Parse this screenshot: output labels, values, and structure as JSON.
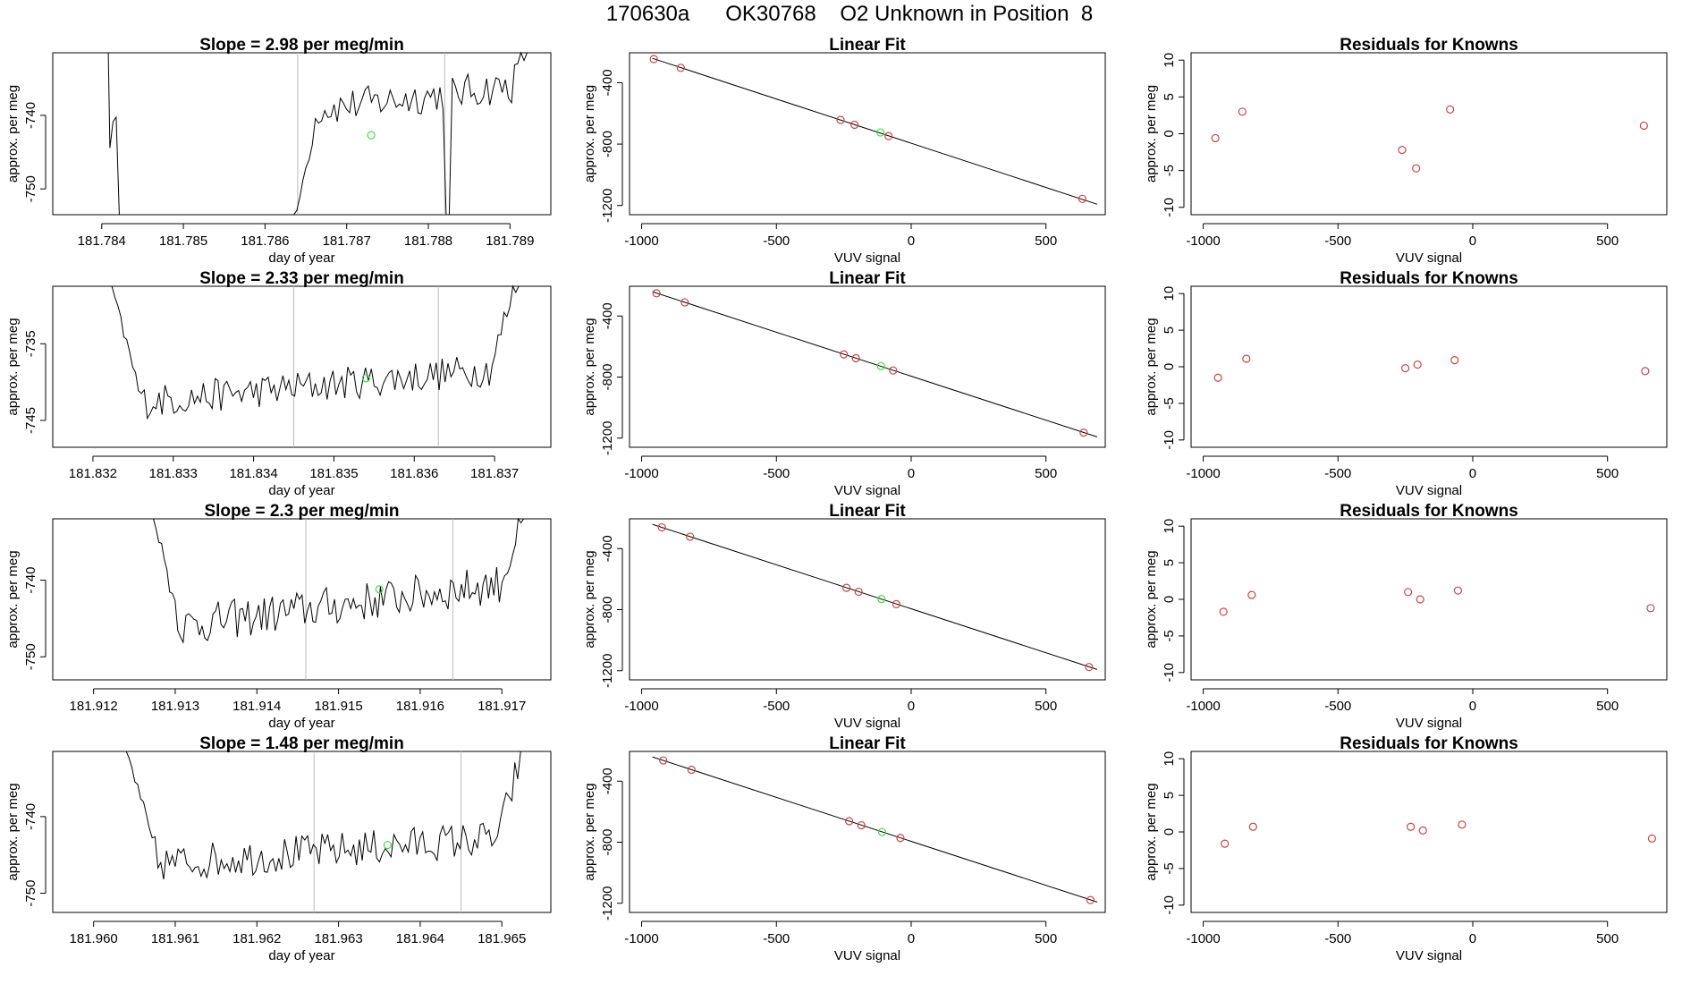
{
  "page_title": "170630a      OK30768    O2 Unknown in Position  8",
  "colors": {
    "trace": "#000000",
    "known_point": "#cc4444",
    "unknown_point": "#44dd44",
    "guide_line": "#bbbbbb",
    "axis": "#000000"
  },
  "chart_data": [
    {
      "type": "line",
      "row": 1,
      "title": "Slope =  2.98  per meg/min",
      "xlabel": "day of year",
      "ylabel": "approx. per meg",
      "xlim": [
        181.7834,
        181.7895
      ],
      "ylim": [
        -753.5,
        -731.5
      ],
      "xticks": [
        181.784,
        181.785,
        181.786,
        181.787,
        181.788,
        181.789
      ],
      "xtick_labels": [
        "181.784",
        "181.785",
        "181.786",
        "181.787",
        "181.788",
        "181.789"
      ],
      "yticks": [
        -750,
        -740
      ],
      "ytick_labels": [
        "-750",
        "-740"
      ],
      "vlines": [
        181.7864,
        181.7882
      ],
      "unknown_point": [
        181.7873,
        -742.7
      ],
      "series": {
        "x_start": 181.7841,
        "x_end": 181.7894,
        "n": 140,
        "baseline": -742.5,
        "trend": 7,
        "noise": 2.4,
        "spike_out_after": 1,
        "spike_in_at": 0.43,
        "spike_in_from": -753.5,
        "tail_rise": 12,
        "dip_at": 0.78
      }
    },
    {
      "type": "line",
      "row": 2,
      "title": "Slope =  2.33  per meg/min",
      "xlabel": "day of year",
      "ylabel": "approx. per meg",
      "xlim": [
        181.8315,
        181.8377
      ],
      "ylim": [
        -748.5,
        -727.5
      ],
      "xticks": [
        181.832,
        181.833,
        181.834,
        181.835,
        181.836,
        181.837
      ],
      "xtick_labels": [
        "181.832",
        "181.833",
        "181.834",
        "181.835",
        "181.836",
        "181.837"
      ],
      "yticks": [
        -745,
        -735
      ],
      "ytick_labels": [
        "-745",
        "-735"
      ],
      "vlines": [
        181.8345,
        181.8363
      ],
      "unknown_point": [
        181.8354,
        -739.5
      ],
      "series": {
        "x_start": 181.8322,
        "x_end": 181.8373,
        "n": 140,
        "baseline": -743,
        "trend": 5,
        "noise": 2.2,
        "start_from": -726,
        "tail_rise": 12
      }
    },
    {
      "type": "line",
      "row": 3,
      "title": "Slope =  2.3  per meg/min",
      "xlabel": "day of year",
      "ylabel": "approx. per meg",
      "xlim": [
        181.9115,
        181.9176
      ],
      "ylim": [
        -753,
        -732
      ],
      "xticks": [
        181.912,
        181.913,
        181.914,
        181.915,
        181.916,
        181.917
      ],
      "xtick_labels": [
        "181.912",
        "181.913",
        "181.914",
        "181.915",
        "181.916",
        "181.917"
      ],
      "yticks": [
        -750,
        -740
      ],
      "ytick_labels": [
        "-750",
        "-740"
      ],
      "vlines": [
        181.9146,
        181.9164
      ],
      "unknown_point": [
        181.9155,
        -741.2
      ],
      "series": {
        "x_start": 181.9127,
        "x_end": 181.9173,
        "n": 140,
        "baseline": -746.5,
        "trend": 6.5,
        "noise": 2.6,
        "start_from": -730,
        "tail_rise": 9
      }
    },
    {
      "type": "line",
      "row": 4,
      "title": "Slope =  1.48  per meg/min",
      "xlabel": "day of year",
      "ylabel": "approx. per meg",
      "xlim": [
        181.9595,
        181.9656
      ],
      "ylim": [
        -752.5,
        -731.5
      ],
      "xticks": [
        181.96,
        181.961,
        181.962,
        181.963,
        181.964,
        181.965
      ],
      "xtick_labels": [
        "181.960",
        "181.961",
        "181.962",
        "181.963",
        "181.964",
        "181.965"
      ],
      "yticks": [
        -750,
        -740
      ],
      "ytick_labels": [
        "-750",
        "-740"
      ],
      "vlines": [
        181.9627,
        181.9645
      ],
      "unknown_point": [
        181.9636,
        -743.7
      ],
      "series": {
        "x_start": 181.9604,
        "x_end": 181.9653,
        "n": 140,
        "baseline": -746.5,
        "trend": 4,
        "noise": 2.4,
        "start_from": -731,
        "tail_rise": 13
      }
    },
    {
      "type": "scatter",
      "row": 1,
      "title": "Linear Fit",
      "xlabel": "VUV signal",
      "ylabel": "approx. per meg",
      "xlim": [
        -1045,
        720
      ],
      "ylim": [
        -1260,
        -205
      ],
      "xticks": [
        -1000,
        -500,
        0,
        500
      ],
      "xtick_labels": [
        "-1000",
        "-500",
        "0",
        "500"
      ],
      "yticks": [
        -1200,
        -800,
        -400
      ],
      "ytick_labels": [
        "-1200",
        "-800",
        "-400"
      ],
      "fit_line": {
        "x": [
          -960,
          690
        ],
        "y": [
          -241,
          -1192
        ]
      },
      "knowns": [
        [
          -955,
          -246
        ],
        [
          -855,
          -303
        ],
        [
          -262,
          -643
        ],
        [
          -210,
          -674
        ],
        [
          -84,
          -748
        ],
        [
          635,
          -1157
        ]
      ],
      "unknown": [
        -114,
        -724
      ]
    },
    {
      "type": "scatter",
      "row": 2,
      "title": "Linear Fit",
      "xlabel": "VUV signal",
      "ylabel": "approx. per meg",
      "xlim": [
        -1045,
        720
      ],
      "ylim": [
        -1260,
        -205
      ],
      "xticks": [
        -1000,
        -500,
        0,
        500
      ],
      "xtick_labels": [
        "-1000",
        "-500",
        "0",
        "500"
      ],
      "yticks": [
        -1200,
        -800,
        -400
      ],
      "ytick_labels": [
        "-1200",
        "-800",
        "-400"
      ],
      "fit_line": {
        "x": [
          -960,
          690
        ],
        "y": [
          -241,
          -1192
        ]
      },
      "knowns": [
        [
          -945,
          -251
        ],
        [
          -840,
          -311
        ],
        [
          -250,
          -651
        ],
        [
          -205,
          -677
        ],
        [
          -67,
          -757
        ],
        [
          640,
          -1164
        ]
      ],
      "unknown": [
        -112,
        -728
      ]
    },
    {
      "type": "scatter",
      "row": 3,
      "title": "Linear Fit",
      "xlabel": "VUV signal",
      "ylabel": "approx. per meg",
      "xlim": [
        -1045,
        720
      ],
      "ylim": [
        -1260,
        -205
      ],
      "xticks": [
        -1000,
        -500,
        0,
        500
      ],
      "xtick_labels": [
        "-1000",
        "-500",
        "0",
        "500"
      ],
      "yticks": [
        -1200,
        -800,
        -400
      ],
      "ytick_labels": [
        "-1200",
        "-800",
        "-400"
      ],
      "fit_line": {
        "x": [
          -960,
          690
        ],
        "y": [
          -241,
          -1192
        ]
      },
      "knowns": [
        [
          -925,
          -261
        ],
        [
          -820,
          -322
        ],
        [
          -240,
          -657
        ],
        [
          -195,
          -683
        ],
        [
          -55,
          -764
        ],
        [
          660,
          -1176
        ]
      ],
      "unknown": [
        -110,
        -731
      ]
    },
    {
      "type": "scatter",
      "row": 4,
      "title": "Linear Fit",
      "xlabel": "VUV signal",
      "ylabel": "approx. per meg",
      "xlim": [
        -1045,
        720
      ],
      "ylim": [
        -1260,
        -205
      ],
      "xticks": [
        -1000,
        -500,
        0,
        500
      ],
      "xtick_labels": [
        "-1000",
        "-500",
        "0",
        "500"
      ],
      "yticks": [
        -1200,
        -800,
        -400
      ],
      "ytick_labels": [
        "-1200",
        "-800",
        "-400"
      ],
      "fit_line": {
        "x": [
          -960,
          690
        ],
        "y": [
          -241,
          -1192
        ]
      },
      "knowns": [
        [
          -920,
          -264
        ],
        [
          -815,
          -325
        ],
        [
          -230,
          -662
        ],
        [
          -185,
          -689
        ],
        [
          -40,
          -772
        ],
        [
          665,
          -1179
        ]
      ],
      "unknown": [
        -108,
        -733
      ]
    },
    {
      "type": "scatter",
      "row": 1,
      "title": "Residuals for Knowns",
      "xlabel": "VUV signal",
      "ylabel": "approx. per meg",
      "xlim": [
        -1045,
        720
      ],
      "ylim": [
        -11,
        11
      ],
      "xticks": [
        -1000,
        -500,
        0,
        500
      ],
      "xtick_labels": [
        "-1000",
        "-500",
        "0",
        "500"
      ],
      "yticks": [
        -10,
        -5,
        0,
        5,
        10
      ],
      "ytick_labels": [
        "-10",
        "-5",
        "0",
        "5",
        "10"
      ],
      "points": [
        [
          -955,
          -0.6
        ],
        [
          -855,
          3.0
        ],
        [
          -262,
          -2.2
        ],
        [
          -210,
          -4.7
        ],
        [
          -84,
          3.3
        ],
        [
          635,
          1.1
        ]
      ]
    },
    {
      "type": "scatter",
      "row": 2,
      "title": "Residuals for Knowns",
      "xlabel": "VUV signal",
      "ylabel": "approx. per meg",
      "xlim": [
        -1045,
        720
      ],
      "ylim": [
        -11,
        11
      ],
      "xticks": [
        -1000,
        -500,
        0,
        500
      ],
      "xtick_labels": [
        "-1000",
        "-500",
        "0",
        "500"
      ],
      "yticks": [
        -10,
        -5,
        0,
        5,
        10
      ],
      "ytick_labels": [
        "-10",
        "-5",
        "0",
        "5",
        "10"
      ],
      "points": [
        [
          -945,
          -1.5
        ],
        [
          -840,
          1.1
        ],
        [
          -250,
          -0.2
        ],
        [
          -205,
          0.3
        ],
        [
          -67,
          0.9
        ],
        [
          640,
          -0.6
        ]
      ]
    },
    {
      "type": "scatter",
      "row": 3,
      "title": "Residuals for Knowns",
      "xlabel": "VUV signal",
      "ylabel": "approx. per meg",
      "xlim": [
        -1045,
        720
      ],
      "ylim": [
        -11,
        11
      ],
      "xticks": [
        -1000,
        -500,
        0,
        500
      ],
      "xtick_labels": [
        "-1000",
        "-500",
        "0",
        "500"
      ],
      "yticks": [
        -10,
        -5,
        0,
        5,
        10
      ],
      "ytick_labels": [
        "-10",
        "-5",
        "0",
        "5",
        "10"
      ],
      "points": [
        [
          -925,
          -1.7
        ],
        [
          -820,
          0.6
        ],
        [
          -240,
          1.0
        ],
        [
          -195,
          0.0
        ],
        [
          -55,
          1.2
        ],
        [
          660,
          -1.2
        ]
      ]
    },
    {
      "type": "scatter",
      "row": 4,
      "title": "Residuals for Knowns",
      "xlabel": "VUV signal",
      "ylabel": "approx. per meg",
      "xlim": [
        -1045,
        720
      ],
      "ylim": [
        -11,
        11
      ],
      "xticks": [
        -1000,
        -500,
        0,
        500
      ],
      "xtick_labels": [
        "-1000",
        "-500",
        "0",
        "500"
      ],
      "yticks": [
        -10,
        -5,
        0,
        5,
        10
      ],
      "ytick_labels": [
        "-10",
        "-5",
        "0",
        "5",
        "10"
      ],
      "points": [
        [
          -920,
          -1.6
        ],
        [
          -815,
          0.7
        ],
        [
          -230,
          0.7
        ],
        [
          -185,
          0.2
        ],
        [
          -40,
          1.0
        ],
        [
          665,
          -0.9
        ]
      ]
    }
  ]
}
